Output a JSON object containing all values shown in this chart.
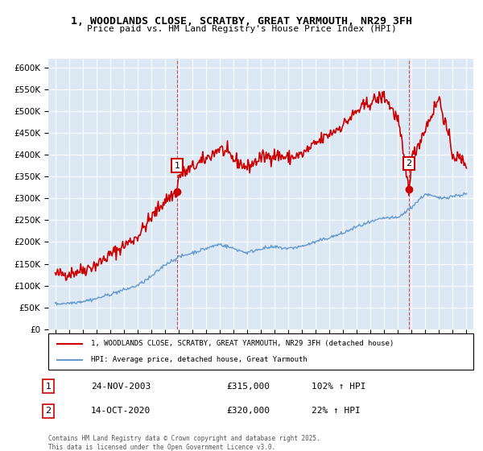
{
  "title": "1, WOODLANDS CLOSE, SCRATBY, GREAT YARMOUTH, NR29 3FH",
  "subtitle": "Price paid vs. HM Land Registry's House Price Index (HPI)",
  "bg_color": "#dce9f5",
  "plot_bg_color": "#dce9f5",
  "red_color": "#cc0000",
  "blue_color": "#6699cc",
  "ylim": [
    0,
    620000
  ],
  "yticks": [
    0,
    50000,
    100000,
    150000,
    200000,
    250000,
    300000,
    350000,
    400000,
    450000,
    500000,
    550000,
    600000
  ],
  "ytick_labels": [
    "£0",
    "£50K",
    "£100K",
    "£150K",
    "£200K",
    "£250K",
    "£300K",
    "£350K",
    "£400K",
    "£450K",
    "£500K",
    "£550K",
    "£600K"
  ],
  "legend_red": "1, WOODLANDS CLOSE, SCRATBY, GREAT YARMOUTH, NR29 3FH (detached house)",
  "legend_blue": "HPI: Average price, detached house, Great Yarmouth",
  "sale1_label": "1",
  "sale1_date": "24-NOV-2003",
  "sale1_price": "£315,000",
  "sale1_hpi": "102% ↑ HPI",
  "sale1_year": 2003.9,
  "sale1_value": 315000,
  "sale2_label": "2",
  "sale2_date": "14-OCT-2020",
  "sale2_price": "£320,000",
  "sale2_hpi": "22% ↑ HPI",
  "sale2_year": 2020.79,
  "sale2_value": 320000,
  "footer": "Contains HM Land Registry data © Crown copyright and database right 2025.\nThis data is licensed under the Open Government Licence v3.0.",
  "xlim_start": 1994.5,
  "xlim_end": 2025.5
}
